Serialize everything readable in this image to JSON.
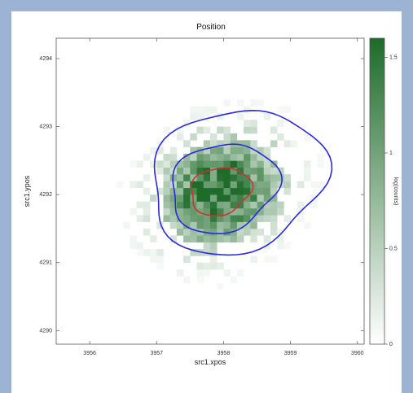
{
  "chart_data": {
    "type": "heatmap",
    "title": "Position",
    "xlabel": "src1.xpos",
    "ylabel": "src1.ypos",
    "xlim": [
      3955.5,
      3960.1
    ],
    "ylim": [
      4289.8,
      4294.3
    ],
    "x_ticks": [
      "3956",
      "3957",
      "3958",
      "3959",
      "3960"
    ],
    "y_ticks": [
      "4290",
      "4291",
      "4292",
      "4293",
      "4294"
    ],
    "colorbar": {
      "label": "log(counts)",
      "range": [
        0,
        1.6
      ],
      "ticks": [
        "0",
        "0.5",
        "1",
        "1.5"
      ],
      "color_low": "#ffffff",
      "color_high": "#1e6b2a"
    },
    "grid": false,
    "bin_size": 0.1,
    "center": [
      3957.9,
      4292.0
    ],
    "spread": [
      0.55,
      0.5
    ],
    "peak_log_counts": 1.6,
    "contours": [
      {
        "level": "inner",
        "color": "#cc3333",
        "center": [
          3957.95,
          4292.05
        ],
        "rx": 0.45,
        "ry": 0.35
      },
      {
        "level": "middle",
        "color": "#2a2ad8",
        "center": [
          3958.0,
          4292.1
        ],
        "rx": 0.8,
        "ry": 0.65
      },
      {
        "level": "outer",
        "color": "#2a2ad8",
        "center": [
          3958.2,
          4292.2
        ],
        "rx": 1.3,
        "ry": 1.05
      }
    ]
  }
}
